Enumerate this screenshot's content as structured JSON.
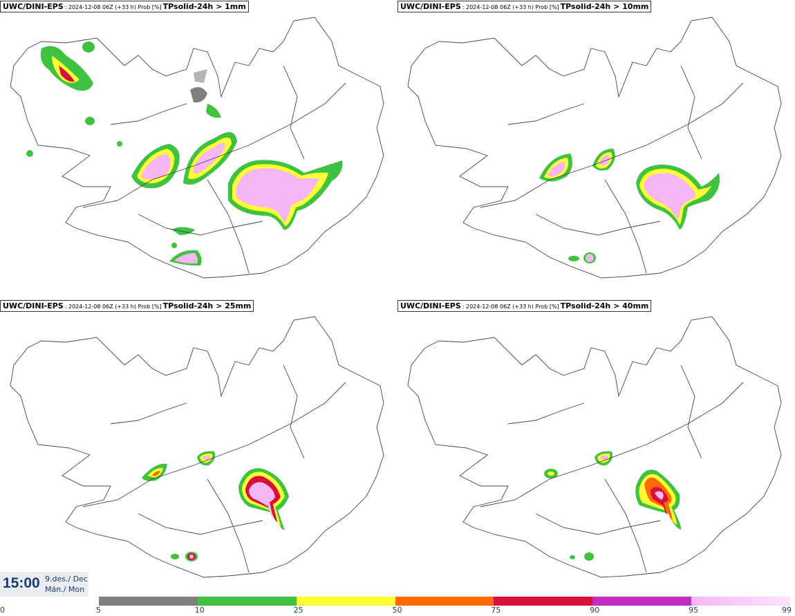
{
  "panels": [
    {
      "model": "UWC/DINI-EPS",
      "meta": ": 2024-12-08 06Z (+33 h) Prob [%]",
      "param": "TPsolid-24h > 1mm"
    },
    {
      "model": "UWC/DINI-EPS",
      "meta": ": 2024-12-08 06Z (+33 h) Prob [%]",
      "param": "TPsolid-24h > 10mm"
    },
    {
      "model": "UWC/DINI-EPS",
      "meta": ": 2024-12-08 06Z (+33 h) Prob [%]",
      "param": "TPsolid-24h > 25mm"
    },
    {
      "model": "UWC/DINI-EPS",
      "meta": ": 2024-12-08 06Z (+33 h) Prob [%]",
      "param": "TPsolid-24h > 40mm"
    }
  ],
  "valid_time": {
    "time": "15:00",
    "date_line1": "9.des./ Dec",
    "date_line2": "Mán./ Mon"
  },
  "legend": {
    "ticks": [
      "0",
      "5",
      "10",
      "25",
      "50",
      "75",
      "90",
      "95",
      "99"
    ],
    "colors": [
      "#ffffff",
      "#b4b4b4",
      "#7f7f7f",
      "#3fc23f",
      "#ffff33",
      "#ff6a00",
      "#d6103b",
      "#c42bc4",
      "#f6b6f6"
    ]
  },
  "colors": {
    "outline": "#444444",
    "text_blue": "#1a3d6b"
  }
}
